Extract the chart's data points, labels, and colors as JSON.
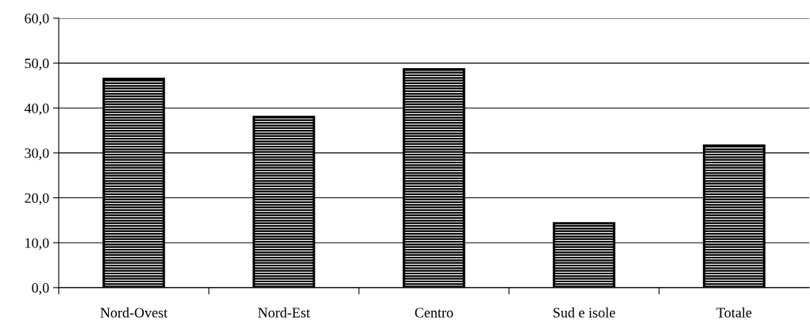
{
  "chart_data": {
    "type": "bar",
    "categories": [
      "Nord-Ovest",
      "Nord-Est",
      "Centro",
      "Sud e isole",
      "Totale"
    ],
    "values": [
      46.5,
      38.0,
      48.6,
      14.3,
      31.6
    ],
    "color": "#000000",
    "ylim": [
      0,
      60
    ],
    "yticks": [
      {
        "value": 0,
        "label": "0,0"
      },
      {
        "value": 10,
        "label": "10,0"
      },
      {
        "value": 20,
        "label": "20,0"
      },
      {
        "value": 30,
        "label": "30,0"
      },
      {
        "value": 40,
        "label": "40,0"
      },
      {
        "value": 50,
        "label": "50,0"
      },
      {
        "value": 60,
        "label": "60,0"
      }
    ],
    "grid": "y"
  }
}
